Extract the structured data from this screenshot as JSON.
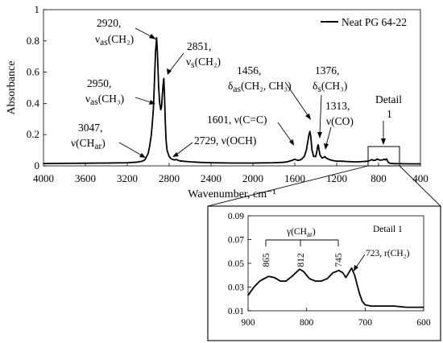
{
  "chart_data": [
    {
      "type": "line",
      "xlabel": "Wavenumber, cm⁻¹",
      "ylabel": "Absorbance",
      "x_reversed": true,
      "xlim": [
        4000,
        400
      ],
      "ylim": [
        0,
        1
      ],
      "xticks": [
        4000,
        3600,
        3200,
        2800,
        2400,
        2000,
        1600,
        1200,
        800,
        400
      ],
      "yticks": [
        0,
        0.2,
        0.4,
        0.6,
        0.8,
        1
      ],
      "ytick_labels": [
        "0",
        "0.2",
        "0.4",
        "0.6",
        "0.8",
        "1"
      ],
      "grid": false,
      "legend_position": "top-right",
      "series": [
        {
          "name": "Neat PG 64-22",
          "color": "#000000",
          "points": [
            [
              4000,
              0.015
            ],
            [
              3800,
              0.016
            ],
            [
              3600,
              0.017
            ],
            [
              3400,
              0.018
            ],
            [
              3300,
              0.019
            ],
            [
              3200,
              0.02
            ],
            [
              3100,
              0.024
            ],
            [
              3060,
              0.03
            ],
            [
              3047,
              0.033
            ],
            [
              3030,
              0.04
            ],
            [
              3000,
              0.08
            ],
            [
              2985,
              0.13
            ],
            [
              2970,
              0.2
            ],
            [
              2960,
              0.28
            ],
            [
              2950,
              0.37
            ],
            [
              2940,
              0.55
            ],
            [
              2930,
              0.73
            ],
            [
              2920,
              0.82
            ],
            [
              2912,
              0.73
            ],
            [
              2900,
              0.5
            ],
            [
              2890,
              0.4
            ],
            [
              2880,
              0.36
            ],
            [
              2872,
              0.38
            ],
            [
              2865,
              0.45
            ],
            [
              2858,
              0.52
            ],
            [
              2851,
              0.56
            ],
            [
              2845,
              0.46
            ],
            [
              2838,
              0.3
            ],
            [
              2830,
              0.17
            ],
            [
              2820,
              0.1
            ],
            [
              2800,
              0.06
            ],
            [
              2780,
              0.045
            ],
            [
              2750,
              0.038
            ],
            [
              2729,
              0.04
            ],
            [
              2700,
              0.032
            ],
            [
              2600,
              0.026
            ],
            [
              2500,
              0.022
            ],
            [
              2400,
              0.02
            ],
            [
              2300,
              0.019
            ],
            [
              2200,
              0.018
            ],
            [
              2100,
              0.018
            ],
            [
              2000,
              0.018
            ],
            [
              1900,
              0.019
            ],
            [
              1800,
              0.02
            ],
            [
              1720,
              0.022
            ],
            [
              1680,
              0.025
            ],
            [
              1640,
              0.032
            ],
            [
              1601,
              0.042
            ],
            [
              1570,
              0.035
            ],
            [
              1540,
              0.04
            ],
            [
              1510,
              0.06
            ],
            [
              1490,
              0.1
            ],
            [
              1475,
              0.16
            ],
            [
              1465,
              0.2
            ],
            [
              1456,
              0.22
            ],
            [
              1448,
              0.19
            ],
            [
              1435,
              0.1
            ],
            [
              1420,
              0.06
            ],
            [
              1400,
              0.06
            ],
            [
              1390,
              0.09
            ],
            [
              1383,
              0.12
            ],
            [
              1376,
              0.135
            ],
            [
              1370,
              0.11
            ],
            [
              1360,
              0.07
            ],
            [
              1340,
              0.05
            ],
            [
              1320,
              0.055
            ],
            [
              1313,
              0.06
            ],
            [
              1300,
              0.05
            ],
            [
              1270,
              0.04
            ],
            [
              1240,
              0.035
            ],
            [
              1200,
              0.03
            ],
            [
              1150,
              0.03
            ],
            [
              1100,
              0.028
            ],
            [
              1030,
              0.026
            ],
            [
              1000,
              0.026
            ],
            [
              950,
              0.028
            ],
            [
              900,
              0.03
            ],
            [
              880,
              0.035
            ],
            [
              865,
              0.04
            ],
            [
              850,
              0.035
            ],
            [
              830,
              0.036
            ],
            [
              812,
              0.044
            ],
            [
              790,
              0.037
            ],
            [
              760,
              0.038
            ],
            [
              745,
              0.043
            ],
            [
              735,
              0.038
            ],
            [
              723,
              0.045
            ],
            [
              710,
              0.025
            ],
            [
              690,
              0.016
            ],
            [
              650,
              0.014
            ],
            [
              600,
              0.014
            ],
            [
              500,
              0.013
            ],
            [
              400,
              0.013
            ]
          ]
        }
      ],
      "annotations": {
        "p2920": {
          "line1": "2920,",
          "main": "ν",
          "sub": "as",
          "tail": "(CH₂)"
        },
        "p2851": {
          "line1": "2851,",
          "main": "ν",
          "sub": "s",
          "tail": "(CH₂)"
        },
        "p2950": {
          "line1": "2950,",
          "main": "ν",
          "sub": "as",
          "tail": "(CH₃)"
        },
        "p3047": {
          "line1": "3047,",
          "pre": "ν(CH",
          "sub": "ar",
          "post": ")"
        },
        "p1456": {
          "line1": "1456,",
          "main": "δ",
          "sub": "as",
          "tail": "(CH₂, CH₃)"
        },
        "p1376": {
          "line1": "1376,",
          "main": "δ",
          "sub": "s",
          "tail": "(CH₃)"
        },
        "p1313": {
          "line1": "1313,",
          "line2": "ν(CO)"
        },
        "p1601": {
          "text": "1601, ν(C=C)"
        },
        "p2729": {
          "text": "2729, ν(OCH)"
        },
        "detail_label": {
          "line1": "Detail",
          "line2": "1"
        }
      }
    },
    {
      "type": "line",
      "title": "Detail 1",
      "x_reversed": true,
      "xlim": [
        900,
        600
      ],
      "ylim": [
        0.01,
        0.09
      ],
      "xticks": [
        900,
        800,
        700,
        600
      ],
      "yticks": [
        0.01,
        0.03,
        0.05,
        0.07,
        0.09
      ],
      "ytick_labels": [
        "0.01",
        "0.03",
        "0.05",
        "0.07",
        "0.09"
      ],
      "grid": false,
      "series": [
        {
          "color": "#000000",
          "points": [
            [
              900,
              0.023
            ],
            [
              890,
              0.03
            ],
            [
              880,
              0.035
            ],
            [
              865,
              0.039
            ],
            [
              855,
              0.038
            ],
            [
              845,
              0.035
            ],
            [
              835,
              0.035
            ],
            [
              825,
              0.039
            ],
            [
              812,
              0.045
            ],
            [
              805,
              0.043
            ],
            [
              795,
              0.037
            ],
            [
              785,
              0.035
            ],
            [
              775,
              0.035
            ],
            [
              765,
              0.037
            ],
            [
              755,
              0.042
            ],
            [
              745,
              0.044
            ],
            [
              738,
              0.042
            ],
            [
              733,
              0.038
            ],
            [
              728,
              0.042
            ],
            [
              723,
              0.046
            ],
            [
              718,
              0.04
            ],
            [
              710,
              0.025
            ],
            [
              705,
              0.018
            ],
            [
              700,
              0.015
            ],
            [
              690,
              0.014
            ],
            [
              670,
              0.014
            ],
            [
              650,
              0.014
            ],
            [
              630,
              0.013
            ],
            [
              600,
              0.013
            ]
          ]
        }
      ],
      "annotations": {
        "group_pre": "γ(CH",
        "group_sub": "ar",
        "group_post": ")",
        "p865": "865",
        "p812": "812",
        "p745": "745",
        "p723": "723, r(CH₂)"
      }
    }
  ]
}
